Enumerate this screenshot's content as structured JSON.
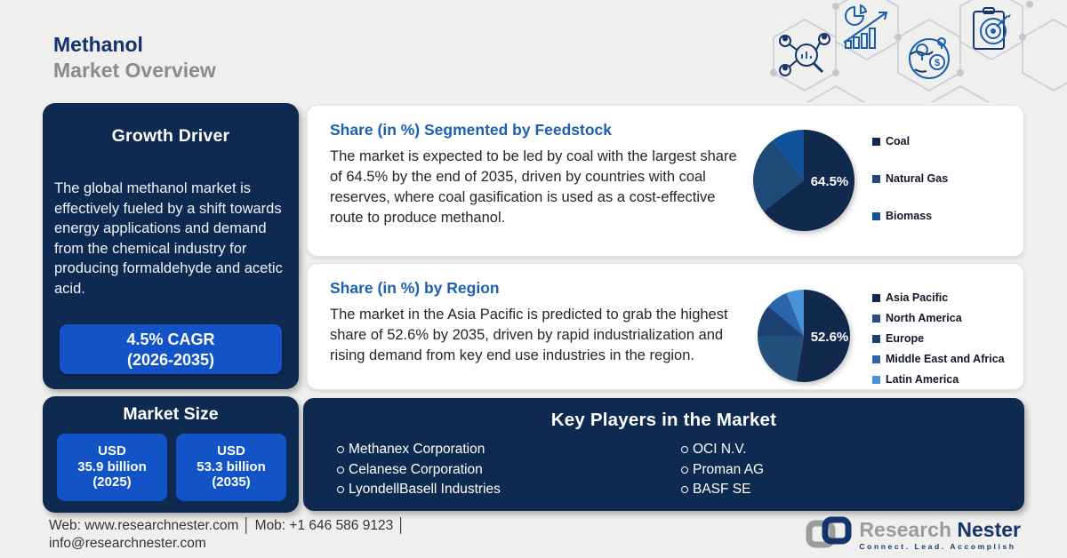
{
  "page": {
    "title_line1": "Methanol",
    "title_line2": "Market Overview"
  },
  "growth_driver": {
    "title": "Growth Driver",
    "body": "The global methanol market is effectively fueled by a shift towards energy applications and demand from the chemical industry for producing formaldehyde and acetic acid.",
    "cagr_line1": "4.5% CAGR",
    "cagr_line2": "(2026-2035)"
  },
  "market_size": {
    "title": "Market Size",
    "items": [
      {
        "line1": "USD",
        "line2": "35.9 billion",
        "line3": "(2025)"
      },
      {
        "line1": "USD",
        "line2": "53.3 billion",
        "line3": "(2035)"
      }
    ]
  },
  "feedstock_section": {
    "title": "Share (in %) Segmented by Feedstock",
    "body": "The market is expected to be led by coal with the largest share of 64.5% by the end of 2035, driven by countries with coal reserves, where coal gasification is used as a cost-effective route to produce methanol."
  },
  "region_section": {
    "title": "Share (in %) by Region",
    "body": "The market in the Asia Pacific is predicted to grab the highest share of 52.6% by 2035, driven by rapid industrialization and rising demand from key end use industries in the region."
  },
  "key_players": {
    "title": "Key Players in the Market",
    "columns": [
      [
        "Methanex Corporation",
        "Celanese Corporation",
        "LyondellBasell Industries"
      ],
      [
        "OCI N.V.",
        "Proman AG",
        "BASF SE"
      ]
    ]
  },
  "footer": {
    "line1": "Web: www.researchnester.com │ Mob: +1 646 586 9123 │",
    "line2": "info@researchnester.com"
  },
  "logo": {
    "name_part1": "Research ",
    "name_part2": "Nester",
    "tagline": "Connect. Lead. Accomplish"
  },
  "decorative_icons": [
    "market-research-icon",
    "growth-chart-icon",
    "global-market-icon",
    "target-clipboard-icon"
  ],
  "colors": {
    "background": "#efefed",
    "navy_panel": "#0e2a50",
    "accent_blue": "#1254c8",
    "heading_blue": "#1d5fb2",
    "title_navy": "#14326b",
    "title_gray": "#8b8b8b"
  },
  "chart_data": [
    {
      "type": "pie",
      "title": "Share (in %) Segmented by Feedstock",
      "label": "64.5%",
      "legend_position": "right",
      "start_angle_deg": -90,
      "series": [
        {
          "name": "Coal",
          "value": 64.5,
          "color": "#12294e"
        },
        {
          "name": "Natural Gas",
          "value": 25.0,
          "color": "#1d4a77"
        },
        {
          "name": "Biomass",
          "value": 10.5,
          "color": "#10519c"
        }
      ]
    },
    {
      "type": "pie",
      "title": "Share (in %) by Region",
      "label": "52.6%",
      "legend_position": "right",
      "start_angle_deg": -90,
      "series": [
        {
          "name": "Asia Pacific",
          "value": 52.6,
          "color": "#12294e"
        },
        {
          "name": "North America",
          "value": 22.4,
          "color": "#24507e"
        },
        {
          "name": "Europe",
          "value": 11.1,
          "color": "#1c4170"
        },
        {
          "name": "Middle East and Africa",
          "value": 7.8,
          "color": "#2a66ac"
        },
        {
          "name": "Latin America",
          "value": 6.1,
          "color": "#4992da"
        }
      ]
    }
  ]
}
